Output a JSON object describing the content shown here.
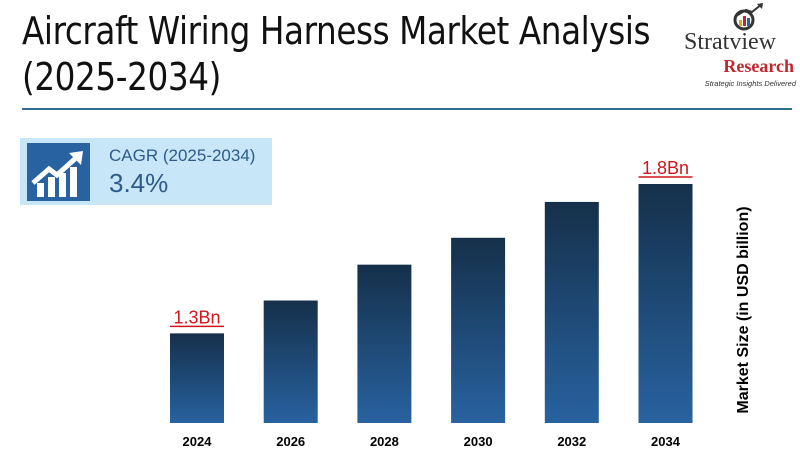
{
  "header": {
    "title_line1": "Aircraft Wiring Harness Market Analysis",
    "title_line2": "(2025-2034)"
  },
  "logo": {
    "name": "Stratview",
    "sub": "Research",
    "tagline": "Strategic Insights Delivered"
  },
  "cagr": {
    "label": "CAGR (2025-2034)",
    "value": "3.4%",
    "icon": "growth-chart-icon"
  },
  "colors": {
    "bar_top": "#15304a",
    "bar_bottom": "#2862a0",
    "label": "#d0161b",
    "accent": "#2d6e91"
  },
  "chart_data": {
    "type": "bar",
    "categories": [
      "2024",
      "2026",
      "2028",
      "2030",
      "2032",
      "2034"
    ],
    "values": [
      1.3,
      1.41,
      1.53,
      1.62,
      1.74,
      1.8
    ],
    "data_labels": {
      "2024": "1.3Bn",
      "2034": "1.8Bn"
    },
    "xlabel": "",
    "ylabel": "Market Size (in USD billion)",
    "ylim": [
      1.0,
      1.8
    ],
    "grid": false
  }
}
